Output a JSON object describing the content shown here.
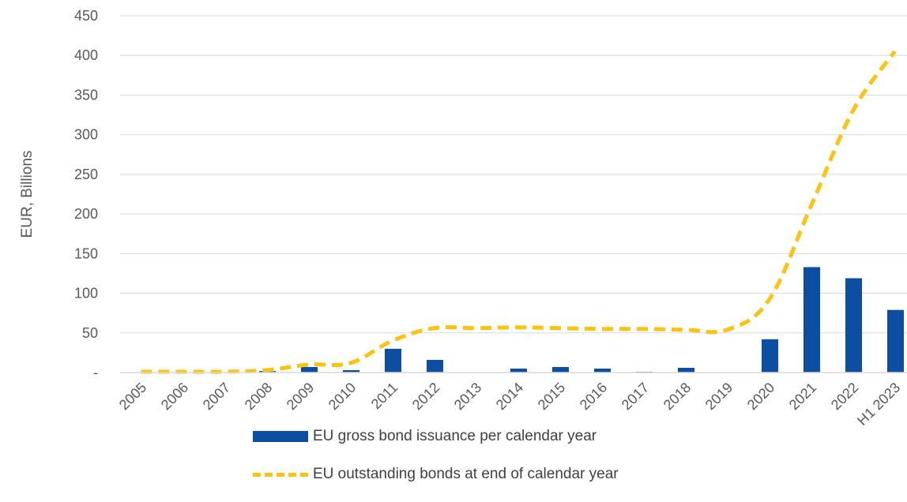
{
  "chart_data": {
    "type": "bar",
    "categories": [
      "2005",
      "2006",
      "2007",
      "2008",
      "2009",
      "2010",
      "2011",
      "2012",
      "2013",
      "2014",
      "2015",
      "2016",
      "2017",
      "2018",
      "2019",
      "2020",
      "2021",
      "2022",
      "H1 2023"
    ],
    "series": [
      {
        "name": "EU gross bond issuance per calendar year",
        "type": "bar",
        "color": "#0B4EA2",
        "values": [
          0,
          0,
          0,
          2,
          7,
          3,
          30,
          16,
          0,
          5,
          7,
          5,
          1,
          6,
          0,
          42,
          133,
          119,
          79
        ]
      },
      {
        "name": "EU outstanding bonds at end of calendar year",
        "type": "line",
        "style": "dashed",
        "color": "#FFC20E",
        "values": [
          1,
          1,
          1,
          3,
          10,
          12,
          40,
          56,
          56,
          57,
          56,
          55,
          55,
          54,
          54,
          92,
          210,
          330,
          405
        ]
      }
    ],
    "ylabel": "EUR, Billions",
    "ylim": [
      0,
      450
    ],
    "yticks": [
      {
        "value": 0,
        "label": "-"
      },
      {
        "value": 50,
        "label": "50"
      },
      {
        "value": 100,
        "label": "100"
      },
      {
        "value": 150,
        "label": "150"
      },
      {
        "value": 200,
        "label": "200"
      },
      {
        "value": 250,
        "label": "250"
      },
      {
        "value": 300,
        "label": "300"
      },
      {
        "value": 350,
        "label": "350"
      },
      {
        "value": 400,
        "label": "400"
      },
      {
        "value": 450,
        "label": "450"
      }
    ],
    "grid": true,
    "legend_position": "bottom"
  }
}
